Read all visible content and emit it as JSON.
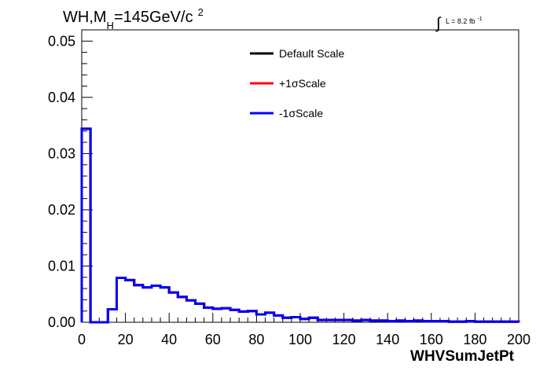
{
  "chart_data": {
    "type": "line",
    "title": {
      "prefix": "WH,M",
      "subscript": "H",
      "suffix": "=145GeV/c",
      "superscript": "2"
    },
    "luminosity": {
      "integral": "∫",
      "text": "L = 8.2 fb",
      "superscript": "-1"
    },
    "xlabel": "WHVSumJetPt",
    "ylabel": "",
    "xlim": [
      0,
      200
    ],
    "ylim": [
      0,
      0.052
    ],
    "x_ticks": [
      0,
      20,
      40,
      60,
      80,
      100,
      120,
      140,
      160,
      180,
      200
    ],
    "x_tick_labels": [
      "0",
      "20",
      "40",
      "60",
      "80",
      "100",
      "120",
      "140",
      "160",
      "180",
      "200"
    ],
    "y_ticks": [
      0,
      0.01,
      0.02,
      0.03,
      0.04,
      0.05
    ],
    "y_tick_labels": [
      "0.00",
      "0.01",
      "0.02",
      "0.03",
      "0.04",
      "0.05"
    ],
    "bin_edges": [
      0,
      4,
      8,
      12,
      16,
      20,
      24,
      28,
      32,
      36,
      40,
      44,
      48,
      52,
      56,
      60,
      64,
      68,
      72,
      76,
      80,
      84,
      88,
      92,
      96,
      100,
      104,
      108,
      112,
      116,
      120,
      124,
      128,
      132,
      136,
      140,
      144,
      148,
      152,
      156,
      160,
      164,
      168,
      172,
      176,
      180,
      184,
      188,
      192,
      196,
      200
    ],
    "legend": {
      "position": "top-center"
    },
    "series": [
      {
        "name": "Default Scale",
        "color": "#000000",
        "values": [
          0.0344,
          0,
          0,
          0.0023,
          0.0079,
          0.0075,
          0.0066,
          0.0062,
          0.0065,
          0.0062,
          0.0053,
          0.0045,
          0.0039,
          0.0033,
          0.0026,
          0.0024,
          0.0025,
          0.0022,
          0.0019,
          0.002,
          0.0014,
          0.0017,
          0.0012,
          0.0008,
          0.0009,
          0.0006,
          0.0008,
          0.0004,
          0.0004,
          0.0004,
          0.0004,
          0.0003,
          0.0004,
          0.0003,
          0.0003,
          0.0002,
          0.0003,
          0.0002,
          0.0003,
          0.0002,
          0.0002,
          0.0002,
          0.0001,
          0.0001,
          0.0002,
          0.0001,
          0.0001,
          0.0001,
          0.0001,
          0.0001
        ]
      },
      {
        "name": "+1σScale",
        "color": "#ff0000",
        "values": [
          0.0344,
          0,
          0,
          0.0023,
          0.0079,
          0.0075,
          0.0066,
          0.0062,
          0.0065,
          0.0062,
          0.0053,
          0.0045,
          0.0039,
          0.0033,
          0.0026,
          0.0024,
          0.0025,
          0.0022,
          0.0019,
          0.002,
          0.0014,
          0.0017,
          0.0012,
          0.0008,
          0.0009,
          0.0006,
          0.0008,
          0.0004,
          0.0004,
          0.0004,
          0.0004,
          0.0003,
          0.0004,
          0.0003,
          0.0003,
          0.0002,
          0.0003,
          0.0002,
          0.0003,
          0.0002,
          0.0002,
          0.0002,
          0.0001,
          0.0001,
          0.0002,
          0.0001,
          0.0001,
          0.0001,
          0.0001,
          0.0001
        ]
      },
      {
        "name": "-1σScale",
        "color": "#0000ff",
        "values": [
          0.0344,
          0,
          0,
          0.0023,
          0.0079,
          0.0075,
          0.0066,
          0.0062,
          0.0065,
          0.0062,
          0.0053,
          0.0045,
          0.0039,
          0.0033,
          0.0026,
          0.0024,
          0.0025,
          0.0022,
          0.0019,
          0.002,
          0.0014,
          0.0017,
          0.0012,
          0.0008,
          0.0009,
          0.0006,
          0.0008,
          0.0004,
          0.0004,
          0.0004,
          0.0004,
          0.0003,
          0.0004,
          0.0003,
          0.0003,
          0.0002,
          0.0003,
          0.0002,
          0.0003,
          0.0002,
          0.0002,
          0.0002,
          0.0001,
          0.0001,
          0.0002,
          0.0001,
          0.0001,
          0.0001,
          0.0001,
          0.0001
        ]
      }
    ]
  }
}
